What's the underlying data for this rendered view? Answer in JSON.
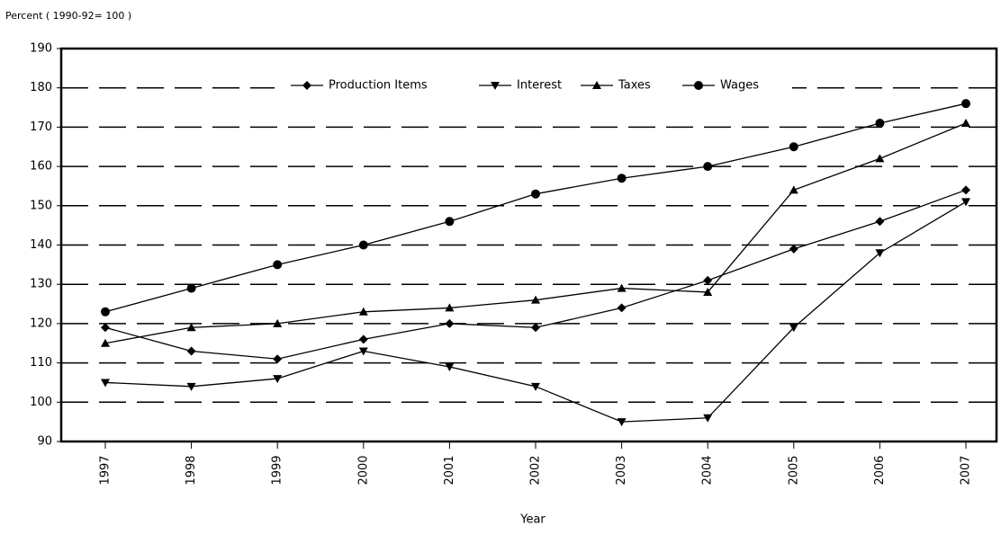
{
  "chart_data": {
    "type": "line",
    "y_label": "Percent ( 1990-92= 100 )",
    "x_label": "Year",
    "categories": [
      "1997",
      "1998",
      "1999",
      "2000",
      "2001",
      "2002",
      "2003",
      "2004",
      "2005",
      "2006",
      "2007"
    ],
    "series": [
      {
        "name": "Production Items",
        "color": "#000000",
        "marker": "diamond",
        "values": [
          119,
          113,
          111,
          116,
          120,
          119,
          124,
          131,
          139,
          146,
          154
        ]
      },
      {
        "name": "Interest",
        "color": "#000000",
        "marker": "triangle-down",
        "values": [
          105,
          104,
          106,
          113,
          109,
          104,
          95,
          96,
          119,
          138,
          151
        ]
      },
      {
        "name": "Taxes",
        "color": "#000000",
        "marker": "triangle-up",
        "values": [
          115,
          119,
          120,
          123,
          124,
          126,
          129,
          128,
          154,
          162,
          171
        ]
      },
      {
        "name": "Wages",
        "color": "#000000",
        "marker": "circle",
        "values": [
          123,
          129,
          135,
          140,
          146,
          153,
          157,
          160,
          165,
          171,
          176
        ]
      }
    ],
    "ylim": [
      90,
      190
    ],
    "yticks": [
      90,
      100,
      110,
      120,
      130,
      140,
      150,
      160,
      170,
      180,
      190
    ],
    "grid": true,
    "legend": "upper center"
  }
}
